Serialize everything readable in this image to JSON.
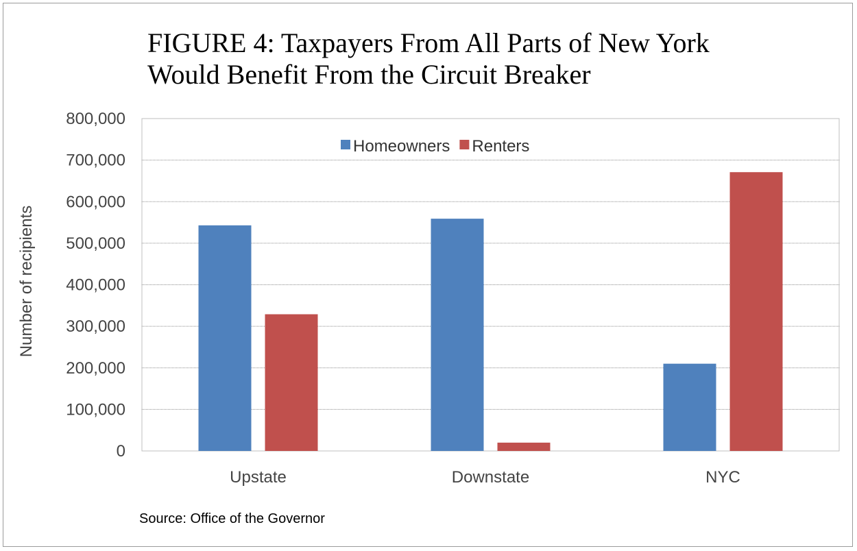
{
  "chart_data": {
    "type": "bar",
    "title_line1": "FIGURE 4: Taxpayers From All Parts of New York",
    "title_line2": "Would Benefit From the Circuit Breaker",
    "xlabel": "",
    "ylabel": "Number of recipients",
    "categories": [
      "Upstate",
      "Downstate",
      "NYC"
    ],
    "series": [
      {
        "name": "Homeowners",
        "color": "#4f81bd",
        "values": [
          543000,
          559000,
          210000
        ]
      },
      {
        "name": "Renters",
        "color": "#c0504d",
        "values": [
          329000,
          20000,
          671000
        ]
      }
    ],
    "ylim": [
      0,
      800000
    ],
    "yticks": [
      0,
      100000,
      200000,
      300000,
      400000,
      500000,
      600000,
      700000,
      800000
    ],
    "ytick_labels": [
      "0",
      "100,000",
      "200,000",
      "300,000",
      "400,000",
      "500,000",
      "600,000",
      "700,000",
      "800,000"
    ],
    "grid": true,
    "legend_position": "top-center"
  },
  "source_note": "Source: Office of the Governor"
}
